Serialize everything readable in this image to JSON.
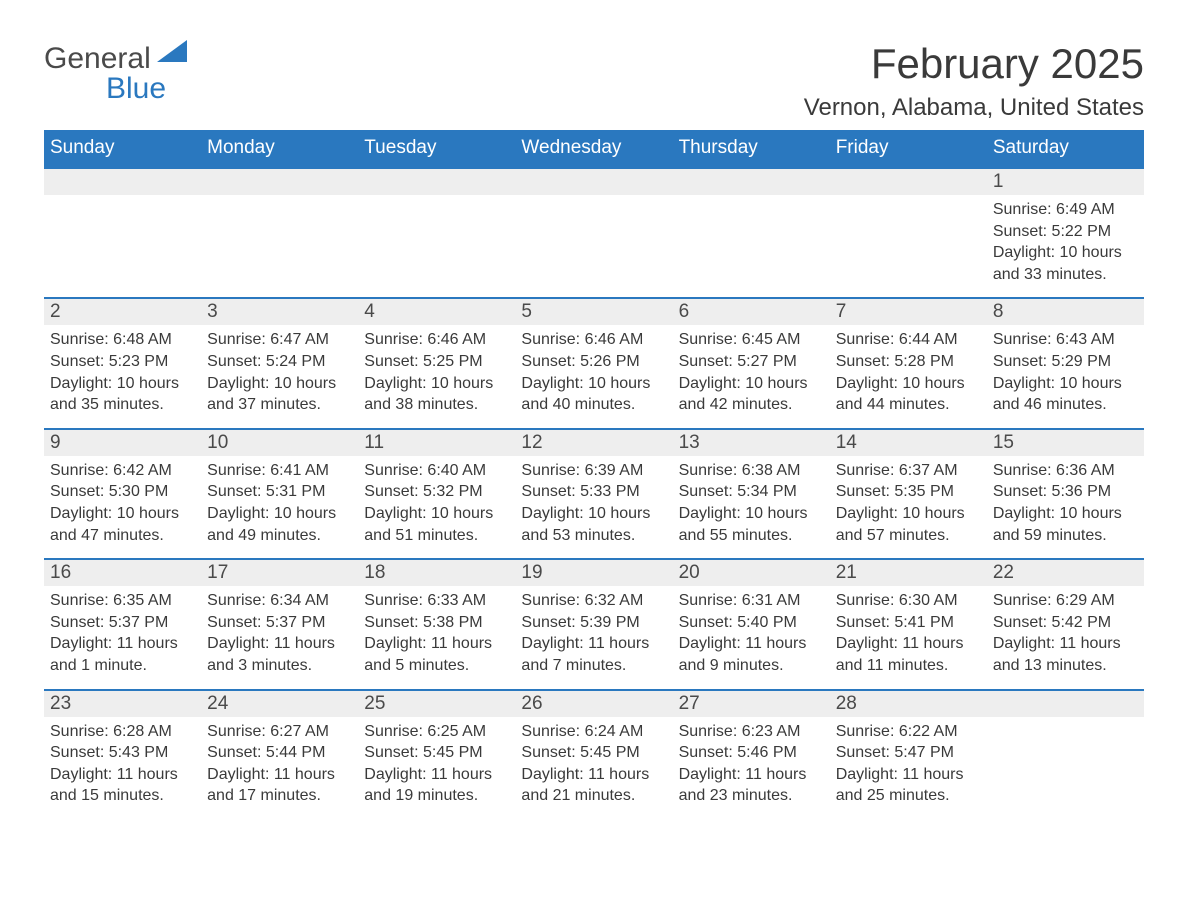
{
  "logo": {
    "text1": "General",
    "text2": "Blue",
    "flag_color": "#2a78bf"
  },
  "title": "February 2025",
  "location": "Vernon, Alabama, United States",
  "colors": {
    "header_bg": "#2a78bf",
    "header_text": "#ffffff",
    "row_border": "#2a78bf",
    "daynum_bg": "#eeeeee",
    "body_text": "#3a3a3a",
    "background": "#ffffff"
  },
  "typography": {
    "title_fontsize": 42,
    "location_fontsize": 24,
    "header_fontsize": 19,
    "daynum_fontsize": 19,
    "info_fontsize": 16
  },
  "layout": {
    "columns": 7,
    "rows": 5
  },
  "day_headers": [
    "Sunday",
    "Monday",
    "Tuesday",
    "Wednesday",
    "Thursday",
    "Friday",
    "Saturday"
  ],
  "weeks": [
    [
      null,
      null,
      null,
      null,
      null,
      null,
      {
        "n": "1",
        "sunrise": "Sunrise: 6:49 AM",
        "sunset": "Sunset: 5:22 PM",
        "daylight": "Daylight: 10 hours and 33 minutes."
      }
    ],
    [
      {
        "n": "2",
        "sunrise": "Sunrise: 6:48 AM",
        "sunset": "Sunset: 5:23 PM",
        "daylight": "Daylight: 10 hours and 35 minutes."
      },
      {
        "n": "3",
        "sunrise": "Sunrise: 6:47 AM",
        "sunset": "Sunset: 5:24 PM",
        "daylight": "Daylight: 10 hours and 37 minutes."
      },
      {
        "n": "4",
        "sunrise": "Sunrise: 6:46 AM",
        "sunset": "Sunset: 5:25 PM",
        "daylight": "Daylight: 10 hours and 38 minutes."
      },
      {
        "n": "5",
        "sunrise": "Sunrise: 6:46 AM",
        "sunset": "Sunset: 5:26 PM",
        "daylight": "Daylight: 10 hours and 40 minutes."
      },
      {
        "n": "6",
        "sunrise": "Sunrise: 6:45 AM",
        "sunset": "Sunset: 5:27 PM",
        "daylight": "Daylight: 10 hours and 42 minutes."
      },
      {
        "n": "7",
        "sunrise": "Sunrise: 6:44 AM",
        "sunset": "Sunset: 5:28 PM",
        "daylight": "Daylight: 10 hours and 44 minutes."
      },
      {
        "n": "8",
        "sunrise": "Sunrise: 6:43 AM",
        "sunset": "Sunset: 5:29 PM",
        "daylight": "Daylight: 10 hours and 46 minutes."
      }
    ],
    [
      {
        "n": "9",
        "sunrise": "Sunrise: 6:42 AM",
        "sunset": "Sunset: 5:30 PM",
        "daylight": "Daylight: 10 hours and 47 minutes."
      },
      {
        "n": "10",
        "sunrise": "Sunrise: 6:41 AM",
        "sunset": "Sunset: 5:31 PM",
        "daylight": "Daylight: 10 hours and 49 minutes."
      },
      {
        "n": "11",
        "sunrise": "Sunrise: 6:40 AM",
        "sunset": "Sunset: 5:32 PM",
        "daylight": "Daylight: 10 hours and 51 minutes."
      },
      {
        "n": "12",
        "sunrise": "Sunrise: 6:39 AM",
        "sunset": "Sunset: 5:33 PM",
        "daylight": "Daylight: 10 hours and 53 minutes."
      },
      {
        "n": "13",
        "sunrise": "Sunrise: 6:38 AM",
        "sunset": "Sunset: 5:34 PM",
        "daylight": "Daylight: 10 hours and 55 minutes."
      },
      {
        "n": "14",
        "sunrise": "Sunrise: 6:37 AM",
        "sunset": "Sunset: 5:35 PM",
        "daylight": "Daylight: 10 hours and 57 minutes."
      },
      {
        "n": "15",
        "sunrise": "Sunrise: 6:36 AM",
        "sunset": "Sunset: 5:36 PM",
        "daylight": "Daylight: 10 hours and 59 minutes."
      }
    ],
    [
      {
        "n": "16",
        "sunrise": "Sunrise: 6:35 AM",
        "sunset": "Sunset: 5:37 PM",
        "daylight": "Daylight: 11 hours and 1 minute."
      },
      {
        "n": "17",
        "sunrise": "Sunrise: 6:34 AM",
        "sunset": "Sunset: 5:37 PM",
        "daylight": "Daylight: 11 hours and 3 minutes."
      },
      {
        "n": "18",
        "sunrise": "Sunrise: 6:33 AM",
        "sunset": "Sunset: 5:38 PM",
        "daylight": "Daylight: 11 hours and 5 minutes."
      },
      {
        "n": "19",
        "sunrise": "Sunrise: 6:32 AM",
        "sunset": "Sunset: 5:39 PM",
        "daylight": "Daylight: 11 hours and 7 minutes."
      },
      {
        "n": "20",
        "sunrise": "Sunrise: 6:31 AM",
        "sunset": "Sunset: 5:40 PM",
        "daylight": "Daylight: 11 hours and 9 minutes."
      },
      {
        "n": "21",
        "sunrise": "Sunrise: 6:30 AM",
        "sunset": "Sunset: 5:41 PM",
        "daylight": "Daylight: 11 hours and 11 minutes."
      },
      {
        "n": "22",
        "sunrise": "Sunrise: 6:29 AM",
        "sunset": "Sunset: 5:42 PM",
        "daylight": "Daylight: 11 hours and 13 minutes."
      }
    ],
    [
      {
        "n": "23",
        "sunrise": "Sunrise: 6:28 AM",
        "sunset": "Sunset: 5:43 PM",
        "daylight": "Daylight: 11 hours and 15 minutes."
      },
      {
        "n": "24",
        "sunrise": "Sunrise: 6:27 AM",
        "sunset": "Sunset: 5:44 PM",
        "daylight": "Daylight: 11 hours and 17 minutes."
      },
      {
        "n": "25",
        "sunrise": "Sunrise: 6:25 AM",
        "sunset": "Sunset: 5:45 PM",
        "daylight": "Daylight: 11 hours and 19 minutes."
      },
      {
        "n": "26",
        "sunrise": "Sunrise: 6:24 AM",
        "sunset": "Sunset: 5:45 PM",
        "daylight": "Daylight: 11 hours and 21 minutes."
      },
      {
        "n": "27",
        "sunrise": "Sunrise: 6:23 AM",
        "sunset": "Sunset: 5:46 PM",
        "daylight": "Daylight: 11 hours and 23 minutes."
      },
      {
        "n": "28",
        "sunrise": "Sunrise: 6:22 AM",
        "sunset": "Sunset: 5:47 PM",
        "daylight": "Daylight: 11 hours and 25 minutes."
      },
      null
    ]
  ]
}
